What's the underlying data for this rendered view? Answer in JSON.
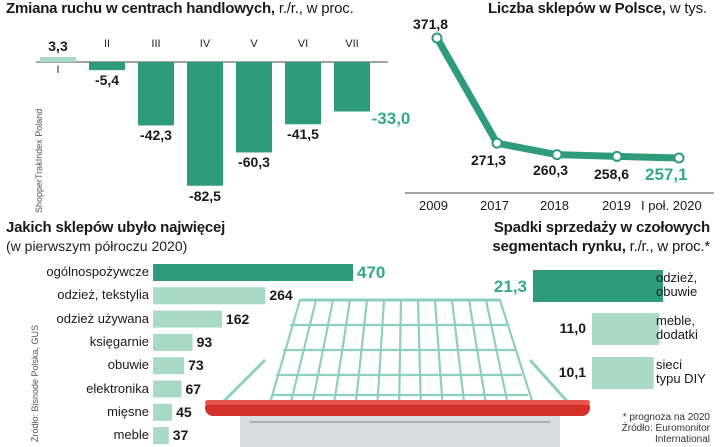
{
  "colors": {
    "dark_teal": "#2f9b7d",
    "light_teal": "#a8d9c6",
    "highlight_text": "#35a88c",
    "cart_red": "#d3302a",
    "cart_wire": "#8fcfc0"
  },
  "chart_data": [
    {
      "type": "bar",
      "title": "Zmiana ruchu w centrach handlowych,",
      "subtitle": "r./r., w proc.",
      "source": "ShopperTrakIndex Poland",
      "categories": [
        "I",
        "II",
        "III",
        "IV",
        "V",
        "VI",
        "VII"
      ],
      "values": [
        3.3,
        -5.4,
        -42.3,
        -82.5,
        -60.3,
        -41.5,
        -33.0
      ],
      "value_labels": [
        "3,3",
        "-5,4",
        "-42,3",
        "-82,5",
        "-60,3",
        "-41,5",
        "-33,0"
      ],
      "highlight_index": 6
    },
    {
      "type": "line",
      "title": "Liczba sklepów w Polsce,",
      "subtitle": "w tys.",
      "x": [
        "2009",
        "2017",
        "2018",
        "2019",
        "I poł. 2020"
      ],
      "values": [
        371.8,
        271.3,
        260.3,
        258.6,
        257.1
      ],
      "value_labels": [
        "371,8",
        "271,3",
        "260,3",
        "258,6",
        "257,1"
      ],
      "highlight_index": 4
    },
    {
      "type": "bar",
      "orientation": "horizontal",
      "title": "Jakich sklepów ubyło najwięcej",
      "subtitle": "(w pierwszym półroczu 2020)",
      "source": "Źródło: Bisnode Polska, GUS",
      "categories": [
        "ogólnospożywcze",
        "odzież, tekstylia",
        "odzież używana",
        "księgarnie",
        "obuwie",
        "elektronika",
        "mięsne",
        "meble"
      ],
      "values": [
        470,
        264,
        162,
        93,
        73,
        67,
        45,
        37
      ],
      "value_labels": [
        "470",
        "264",
        "162",
        "93",
        "73",
        "67",
        "45",
        "37"
      ],
      "highlight_index": 0
    },
    {
      "type": "bar",
      "orientation": "horizontal",
      "title_line1": "Spadki sprzedaży w czołowych",
      "title_line2": "segmentach rynku,",
      "subtitle": "r./r., w proc.*",
      "categories": [
        "odzież, obuwie",
        "meble, dodatki",
        "sieci typu DIY"
      ],
      "category_lines": [
        [
          "odzież,",
          "obuwie"
        ],
        [
          "meble,",
          "dodatki"
        ],
        [
          "sieci",
          "typu DIY"
        ]
      ],
      "values": [
        21.3,
        11.0,
        10.1
      ],
      "value_labels": [
        "21,3",
        "11,0",
        "10,1"
      ],
      "highlight_index": 0,
      "footnote": "* prognoza na 2020",
      "source_lines": [
        "Źródło: Euromonitor",
        "International"
      ]
    }
  ],
  "illustration": {
    "name": "shopping-cart"
  }
}
